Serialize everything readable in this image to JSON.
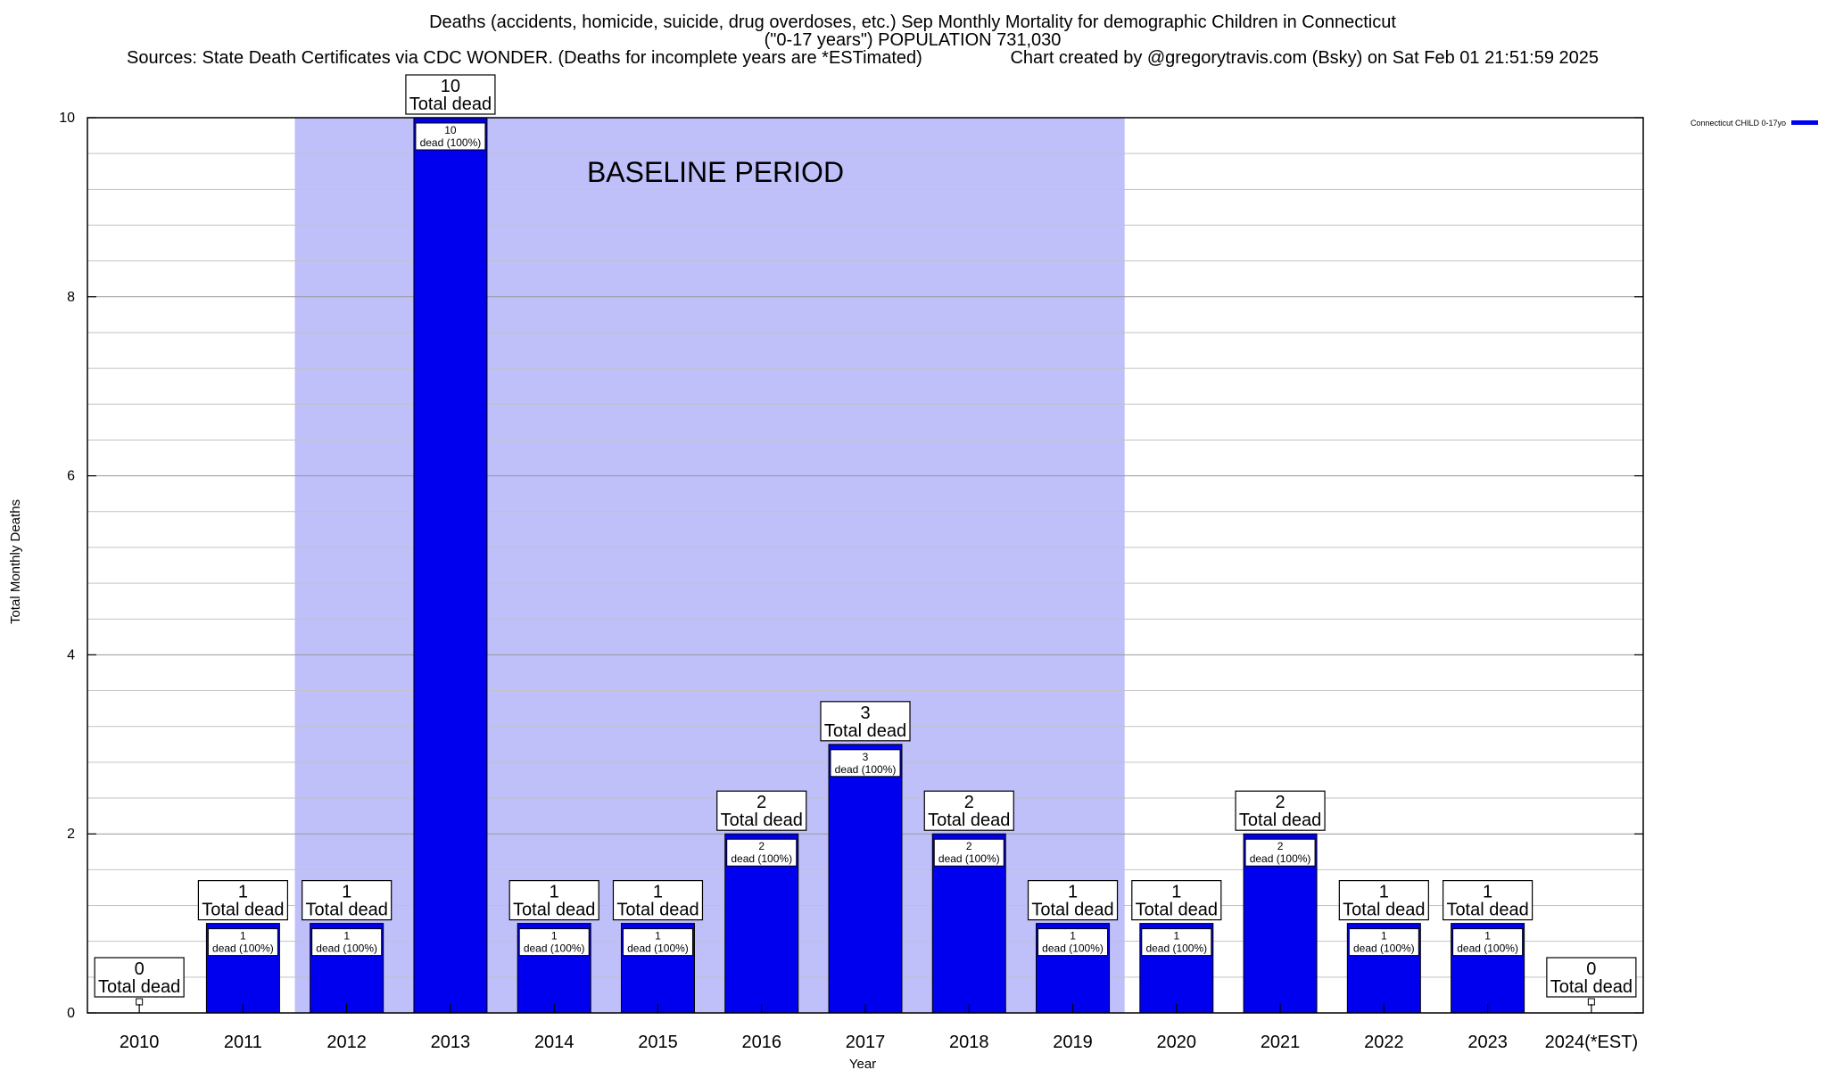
{
  "chart_data": {
    "type": "bar",
    "title_lines": [
      "Deaths (accidents, homicide, suicide, drug overdoses, etc.) Sep Monthly Mortality for demographic Children in Connecticut",
      "(\"0-17 years\") POPULATION 731,030"
    ],
    "source_note": "Sources: State Death Certificates via CDC WONDER. (Deaths for incomplete years are *ESTimated)",
    "credit": "Chart created by @gregorytravis.com (Bsky) on Sat Feb 01 21:51:59 2025",
    "xlabel": "Year",
    "ylabel": "Total Monthly Deaths",
    "ylim": [
      0,
      10
    ],
    "y_ticks": [
      0,
      2,
      4,
      6,
      8,
      10
    ],
    "grid": true,
    "legend": {
      "placement": "top-right",
      "entries": [
        {
          "name": "Connecticut CHILD 0-17yo",
          "color": "#0000ee"
        }
      ]
    },
    "baseline": {
      "label": "BASELINE PERIOD",
      "from": "2012",
      "to": "2019",
      "color": "#bfbffa"
    },
    "bar_color": "#0000ee",
    "total_label_suffix": "Total dead",
    "inner_label_template": "dead (100%)",
    "categories": [
      "2010",
      "2011",
      "2012",
      "2013",
      "2014",
      "2015",
      "2016",
      "2017",
      "2018",
      "2019",
      "2020",
      "2021",
      "2022",
      "2023",
      "2024(*EST)"
    ],
    "series": [
      {
        "name": "Connecticut CHILD 0-17yo",
        "values": [
          0,
          1,
          1,
          10,
          1,
          1,
          2,
          3,
          2,
          1,
          1,
          2,
          1,
          1,
          0
        ]
      }
    ]
  }
}
